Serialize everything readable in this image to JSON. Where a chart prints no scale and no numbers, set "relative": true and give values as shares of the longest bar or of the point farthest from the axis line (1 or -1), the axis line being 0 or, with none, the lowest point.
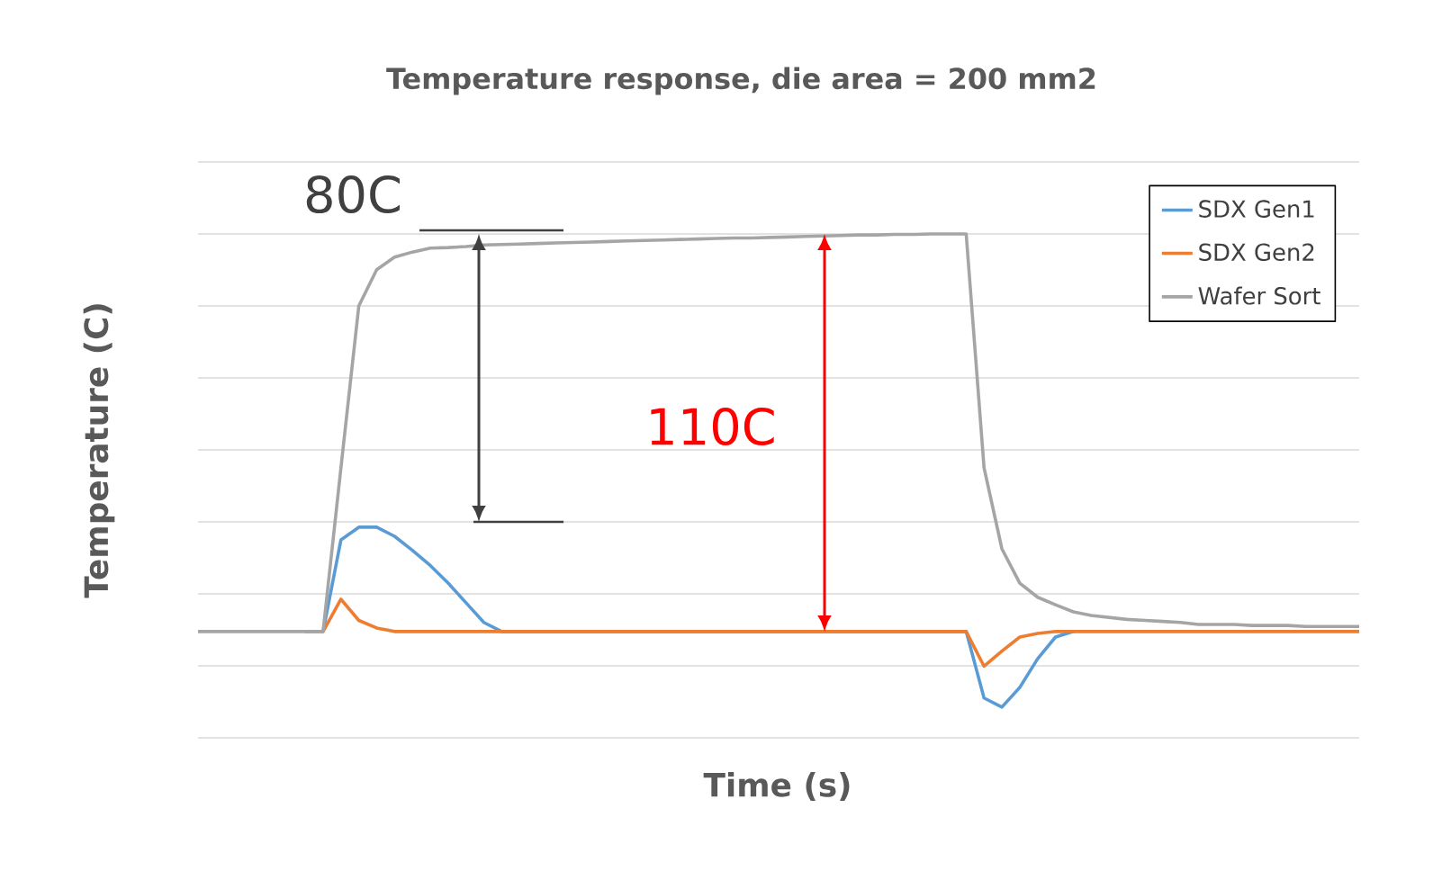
{
  "chart_data": {
    "type": "line",
    "title": "Temperature response, die area = 200 mm2",
    "xlabel": "Time (s)",
    "ylabel": "Temperature (C)",
    "relative": true,
    "grid": "y",
    "legend": "top right",
    "marker": "none",
    "line_style": "solid",
    "annotations": [
      "80C",
      "110C"
    ],
    "categories": [
      null,
      null,
      null,
      null,
      null,
      null,
      null,
      null,
      null,
      null,
      null,
      null,
      null,
      null,
      null,
      null,
      null,
      null,
      null,
      null,
      null,
      null,
      null,
      null,
      null,
      null,
      null,
      null,
      null,
      null,
      null,
      null,
      null,
      null,
      null,
      null,
      null,
      null,
      null,
      null,
      null,
      null,
      null,
      null,
      null,
      null,
      null,
      null,
      null,
      null,
      null,
      null,
      null,
      null,
      null,
      null,
      null,
      null,
      null,
      null,
      null,
      null,
      null,
      null,
      null,
      null
    ],
    "series": [
      {
        "name": "SDX Gen1",
        "color": "#5b9bd5",
        "values": [
          null,
          null,
          null,
          null,
          null,
          null,
          null,
          0.211,
          0.393,
          0.418,
          0.418,
          0.4,
          0.372,
          0.342,
          0.307,
          0.268,
          0.229,
          0.211,
          null,
          null,
          null,
          null,
          null,
          null,
          null,
          null,
          null,
          null,
          null,
          null,
          null,
          null,
          null,
          null,
          null,
          null,
          null,
          null,
          null,
          null,
          null,
          null,
          null,
          0.211,
          0.079,
          0.061,
          0.1,
          0.157,
          0.2,
          0.211,
          null,
          null,
          null,
          null,
          null,
          null,
          null,
          null,
          null,
          null,
          null,
          null,
          null,
          null,
          null,
          null
        ]
      },
      {
        "name": "SDX Gen2",
        "color": "#ed7d31",
        "values": [
          null,
          null,
          null,
          null,
          null,
          null,
          0.211,
          0.211,
          0.275,
          0.233,
          0.218,
          0.211,
          0.211,
          0.211,
          0.211,
          0.211,
          0.211,
          0.211,
          0.211,
          0.211,
          0.211,
          0.211,
          0.211,
          0.211,
          0.211,
          0.211,
          0.211,
          0.211,
          0.211,
          0.211,
          0.211,
          0.211,
          0.211,
          0.211,
          0.211,
          0.211,
          0.211,
          0.211,
          0.211,
          0.211,
          0.211,
          0.211,
          0.211,
          0.211,
          0.142,
          0.172,
          0.2,
          0.207,
          0.211,
          0.211,
          0.211,
          0.211,
          0.211,
          0.211,
          0.211,
          0.211,
          0.211,
          0.211,
          0.211,
          0.211,
          0.211,
          0.211,
          0.211,
          0.211,
          0.211,
          0.211
        ]
      },
      {
        "name": "Wafer Sort",
        "color": "#a5a5a5",
        "values": [
          0.211,
          0.211,
          0.211,
          0.211,
          0.211,
          0.211,
          0.211,
          0.211,
          0.536,
          0.857,
          0.929,
          0.954,
          0.964,
          0.972,
          0.973,
          0.975,
          0.978,
          0.979,
          0.98,
          0.981,
          0.982,
          0.983,
          0.984,
          0.985,
          0.986,
          0.987,
          0.988,
          0.989,
          0.99,
          0.991,
          0.992,
          0.992,
          0.993,
          0.994,
          0.995,
          0.996,
          0.997,
          0.998,
          0.998,
          0.999,
          0.999,
          1.0,
          1.0,
          1.0,
          0.536,
          0.375,
          0.307,
          0.279,
          0.264,
          0.25,
          0.243,
          0.239,
          0.235,
          0.233,
          0.231,
          0.229,
          0.225,
          0.225,
          0.225,
          0.223,
          0.223,
          0.223,
          0.221,
          0.221,
          0.221,
          0.221
        ]
      }
    ]
  }
}
